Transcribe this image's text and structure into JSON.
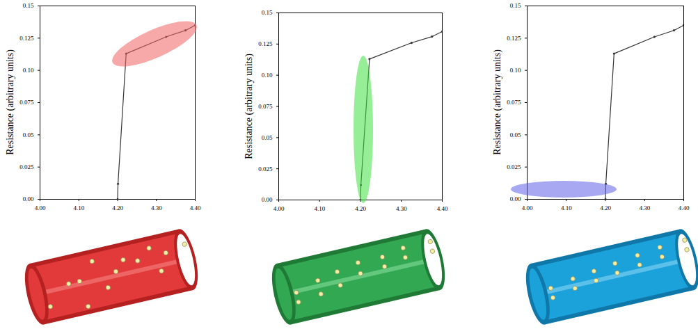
{
  "chart_data": [
    {
      "type": "line",
      "y_label": "Resistance  (arbitrary units)",
      "x": [
        4.2,
        4.201,
        4.222,
        4.325,
        4.375,
        4.4
      ],
      "values": [
        0,
        0.012,
        0.113,
        0.126,
        0.131,
        0.135
      ],
      "color": "#333333",
      "marker": "circle",
      "xlim": [
        4.0,
        4.4
      ],
      "xticks": [
        {
          "value": 4.0,
          "label": "4.00"
        },
        {
          "value": 4.1,
          "label": "4.10"
        },
        {
          "value": 4.2,
          "label": "4.20"
        },
        {
          "value": 4.3,
          "label": "4.30"
        },
        {
          "value": 4.4,
          "label": "4.40"
        }
      ],
      "ylim": [
        0,
        0.15
      ],
      "yticks": [
        {
          "value": 0,
          "label": "0.00"
        },
        0.025,
        0.05,
        0.075,
        {
          "value": 0.1,
          "label": "0.10"
        },
        0.125,
        0.15
      ]
    },
    {
      "type": "line",
      "y_label": "Resistance  (arbitrary units)",
      "x": [
        4.2,
        4.201,
        4.222,
        4.325,
        4.375,
        4.4
      ],
      "values": [
        0,
        0.012,
        0.113,
        0.126,
        0.131,
        0.135
      ],
      "color": "#333333",
      "marker": "circle",
      "xlim": [
        4.0,
        4.4
      ],
      "xticks": [
        {
          "value": 4.0,
          "label": "4.00"
        },
        {
          "value": 4.1,
          "label": "4.10"
        },
        {
          "value": 4.2,
          "label": "4.20"
        },
        {
          "value": 4.3,
          "label": "4.30"
        },
        {
          "value": 4.4,
          "label": "4.40"
        }
      ],
      "ylim": [
        0,
        0.15
      ],
      "yticks": [
        {
          "value": 0,
          "label": "0.00"
        },
        0.025,
        0.05,
        0.075,
        {
          "value": 0.1,
          "label": "0.10"
        },
        0.125,
        0.15
      ]
    },
    {
      "type": "line",
      "y_label": "Resistance  (arbitrary units)",
      "x": [
        4.2,
        4.201,
        4.222,
        4.325,
        4.375,
        4.4
      ],
      "values": [
        0,
        0.012,
        0.113,
        0.126,
        0.131,
        0.135
      ],
      "color": "#333333",
      "marker": "circle",
      "xlim": [
        4.0,
        4.4
      ],
      "xticks": [
        {
          "value": 4.0,
          "label": "4.00"
        },
        {
          "value": 4.1,
          "label": "4.10"
        },
        {
          "value": 4.2,
          "label": "4.20"
        },
        {
          "value": 4.3,
          "label": "4.30"
        },
        {
          "value": 4.4,
          "label": "4.40"
        }
      ],
      "ylim": [
        0,
        0.15
      ],
      "yticks": [
        {
          "value": 0,
          "label": "0.00"
        },
        0.025,
        0.05,
        0.075,
        {
          "value": 0.1,
          "label": "0.10"
        },
        0.125,
        0.15
      ]
    }
  ]
}
